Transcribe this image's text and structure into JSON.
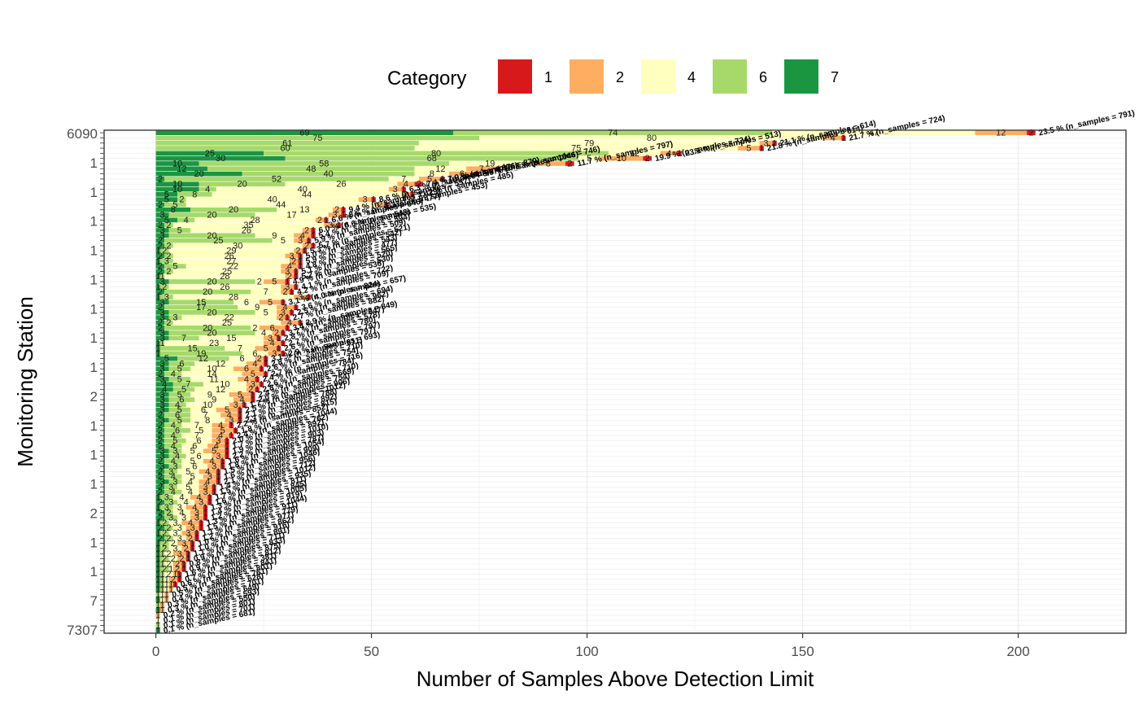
{
  "chart_data": {
    "type": "bar",
    "orientation": "horizontal",
    "stacked": true,
    "xlabel": "Number of Samples Above Detection Limit",
    "ylabel": "Monitoring Station",
    "xlim": [
      -12,
      225
    ],
    "x_ticks": [
      0,
      50,
      100,
      150,
      200
    ],
    "grid": true,
    "legend": {
      "title": "Category",
      "position": "top",
      "entries": [
        {
          "label": "1",
          "color": "#d7191c"
        },
        {
          "label": "2",
          "color": "#fdae61"
        },
        {
          "label": "4",
          "color": "#ffffbf"
        },
        {
          "label": "6",
          "color": "#a6d96a"
        },
        {
          "label": "7",
          "color": "#1a9641"
        }
      ]
    },
    "visible_station_labels": [
      "6090",
      "1",
      "1",
      "1",
      "1",
      "1",
      "1",
      "1",
      "1",
      "2",
      "1",
      "1",
      "1",
      "2",
      "1",
      "1",
      "7",
      "7307"
    ],
    "bars": [
      {
        "segments": [
          2,
          12,
          47,
          74,
          69
        ],
        "label": "23.5 % (n_samples = 791)"
      },
      {
        "segments": [
          1,
          4,
          80,
          75,
          0
        ],
        "label": "21.7 % (n_samples = 724)"
      },
      {
        "segments": [
          1,
          3,
          79,
          61,
          0
        ],
        "label": "21.1 % (n_samples = 614)"
      },
      {
        "segments": [
          1,
          5,
          75,
          60,
          0
        ],
        "label": "21.8 % (n_samples = 614)"
      },
      {
        "segments": [
          1,
          4,
          12,
          80,
          25
        ],
        "label": "23.1 % (n_samples = 513)"
      },
      {
        "segments": [
          2,
          10,
          5,
          68,
          30
        ],
        "label": "19.9 % (n_samples = 724)"
      },
      {
        "segments": [
          2,
          8,
          19,
          58,
          10
        ],
        "label": "11.7 % (n_samples = 797)"
      },
      {
        "segments": [
          1,
          7,
          12,
          48,
          12
        ],
        "label": "10.8 % (n_samples = 746)"
      },
      {
        "segments": [
          1,
          6,
          8,
          40,
          20
        ],
        "label": "6.5 % (n_samples = 1046)"
      },
      {
        "segments": [
          1,
          5,
          7,
          52,
          2
        ],
        "label": "7.9 % (n_samples = 870)"
      },
      {
        "segments": [
          2,
          4,
          26,
          20,
          10
        ],
        "label": "7.4 % (n_samples = 876)"
      },
      {
        "segments": [
          1,
          3,
          40,
          4,
          10
        ],
        "label": "6.3 % (n_samples = 997)"
      },
      {
        "segments": [
          1,
          2,
          44,
          8,
          5
        ],
        "label": "11.2 % (n_samples = 485)"
      },
      {
        "segments": [
          1,
          3,
          40,
          2,
          5
        ],
        "label": "8.6 % (n_samples = 557)"
      },
      {
        "segments": [
          1,
          2,
          44,
          5,
          2
        ],
        "label": "11.1 % (n_samples = 453)"
      },
      {
        "segments": [
          1,
          2,
          13,
          20,
          8
        ],
        "label": "9.4 % (n_samples = 429)"
      },
      {
        "segments": [
          1,
          3,
          17,
          20,
          3
        ],
        "label": "8.6 % (n_samples = 477)"
      },
      {
        "segments": [
          1,
          2,
          28,
          4,
          5
        ],
        "label": "6.6 % (n_samples = 546)"
      },
      {
        "segments": [
          1,
          3,
          35,
          2,
          2
        ],
        "label": "6.6 % (n_samples = 535)"
      },
      {
        "segments": [
          1,
          2,
          26,
          5,
          3
        ],
        "label": "6.0 % (n_samples = 543)"
      },
      {
        "segments": [
          1,
          4,
          9,
          20,
          3
        ],
        "label": "5.4 % (n_samples = 594)"
      },
      {
        "segments": [
          1,
          3,
          5,
          25,
          2
        ],
        "label": "5.9 % (n_samples = 509)"
      },
      {
        "segments": [
          1,
          2,
          30,
          2,
          2
        ],
        "label": "5.7 % (n_samples = 521)"
      },
      {
        "segments": [
          1,
          2,
          29,
          2,
          1
        ],
        "label": "5.3 % (n_samples = 542)"
      },
      {
        "segments": [
          1,
          3,
          26,
          2,
          2
        ],
        "label": "5.0 % (n_samples = 543)"
      },
      {
        "segments": [
          1,
          2,
          27,
          3,
          1
        ],
        "label": "5.9 % (n_samples = 477)"
      },
      {
        "segments": [
          1,
          4,
          22,
          5,
          2
        ],
        "label": "4.8 % (n_samples = 565)"
      },
      {
        "segments": [
          1,
          3,
          25,
          2,
          2
        ],
        "label": "5.1 % (n_samples = 520)"
      },
      {
        "segments": [
          1,
          2,
          28,
          1,
          1
        ],
        "label": "5.2 % (n_samples = 530)"
      },
      {
        "segments": [
          1,
          5,
          2,
          20,
          3
        ],
        "label": "4.9 % (n_samples = 536)"
      },
      {
        "segments": [
          1,
          3,
          26,
          2,
          1
        ],
        "label": "4.1 % (n_samples = 722)"
      },
      {
        "segments": [
          1,
          2,
          7,
          20,
          2
        ],
        "label": "4.2 % (n_samples = 709)"
      },
      {
        "segments": [
          1,
          3,
          28,
          3,
          1
        ],
        "label": "4.0 % (n_samples = 657)"
      },
      {
        "segments": [
          1,
          5,
          6,
          15,
          3
        ],
        "label": "3.1 % (n_samples = 824)"
      },
      {
        "segments": [
          1,
          4,
          9,
          17,
          2
        ],
        "label": "3.6 % (n_samples = 694)"
      },
      {
        "segments": [
          1,
          3,
          5,
          20,
          3
        ],
        "label": "2.5 % (n_samples = 962)"
      },
      {
        "segments": [
          1,
          2,
          22,
          3,
          3
        ],
        "label": "2.7 % (n_samples = 882)"
      },
      {
        "segments": [
          1,
          4,
          25,
          2,
          2
        ],
        "label": "2.9 % (n_samples = 849)"
      },
      {
        "segments": [
          1,
          6,
          2,
          20,
          2
        ],
        "label": "3.4 % (n_samples = 647)"
      },
      {
        "segments": [
          1,
          2,
          4,
          20,
          3
        ],
        "label": "3.7 % (n_samples = 578)"
      },
      {
        "segments": [
          1,
          3,
          15,
          7,
          3
        ],
        "label": "2.8 % (n_samples = 780)"
      },
      {
        "segments": [
          1,
          4,
          23,
          1,
          1
        ],
        "label": "2.7 % (n_samples = 797)"
      },
      {
        "segments": [
          1,
          5,
          7,
          15,
          1
        ],
        "label": "2.6 % (n_samples = 797)"
      },
      {
        "segments": [
          1,
          3,
          6,
          19,
          1
        ],
        "label": "2.9 % (n_samples = 693)"
      },
      {
        "segments": [
          1,
          2,
          6,
          12,
          5
        ],
        "label": "3.1 % (n_samples = 611)"
      },
      {
        "segments": [
          1,
          4,
          12,
          6,
          3
        ],
        "label": "2.8 % (n_samples = 710)"
      },
      {
        "segments": [
          1,
          6,
          10,
          5,
          3
        ],
        "label": "2.6 % (n_samples = 754)"
      },
      {
        "segments": [
          1,
          5,
          14,
          4,
          2
        ],
        "label": "2.7 % (n_samples = 716)"
      },
      {
        "segments": [
          1,
          4,
          11,
          5,
          3
        ],
        "label": "2.4 % (n_samples = 784)"
      },
      {
        "segments": [
          1,
          3,
          10,
          7,
          4
        ],
        "label": "2.6 % (n_samples = 710)"
      },
      {
        "segments": [
          1,
          2,
          12,
          5,
          4
        ],
        "label": "2.8 % (n_samples = 669)"
      },
      {
        "segments": [
          1,
          5,
          9,
          5,
          3
        ],
        "label": "2.4 % (n_samples = 754)"
      },
      {
        "segments": [
          1,
          4,
          9,
          6,
          3
        ],
        "label": "2.0 % (n_samples = 906)"
      },
      {
        "segments": [
          1,
          3,
          10,
          4,
          3
        ],
        "label": "1.7 % (n_samples = 1012)"
      },
      {
        "segments": [
          1,
          5,
          6,
          5,
          3
        ],
        "label": "2.5 % (n_samples = 788)"
      },
      {
        "segments": [
          1,
          4,
          7,
          6,
          2
        ],
        "label": "2.1 % (n_samples = 892)"
      },
      {
        "segments": [
          1,
          3,
          8,
          5,
          3
        ],
        "label": "2.3 % (n_samples = 815)"
      },
      {
        "segments": [
          1,
          4,
          7,
          4,
          2
        ],
        "label": "2.2 % (n_samples = 852)"
      },
      {
        "segments": [
          1,
          5,
          5,
          6,
          2
        ],
        "label": "1.8 % (n_samples = 1044)"
      },
      {
        "segments": [
          1,
          4,
          7,
          4,
          2
        ],
        "label": "2.4 % (n_samples = 762)"
      },
      {
        "segments": [
          1,
          3,
          6,
          5,
          2
        ],
        "label": "2.0 % (n_samples = 892)"
      },
      {
        "segments": [
          1,
          4,
          6,
          4,
          2
        ],
        "label": "1.7 % (n_samples = 1010)"
      },
      {
        "segments": [
          1,
          5,
          5,
          3,
          3
        ],
        "label": "1.9 % (n_samples = 903)"
      },
      {
        "segments": [
          1,
          3,
          6,
          4,
          3
        ],
        "label": "2.2 % (n_samples = 787)"
      },
      {
        "segments": [
          1,
          4,
          5,
          4,
          2
        ],
        "label": "1.6 % (n_samples = 1054)"
      },
      {
        "segments": [
          1,
          3,
          6,
          3,
          3
        ],
        "label": "1.8 % (n_samples = 909)"
      },
      {
        "segments": [
          1,
          4,
          5,
          3,
          2
        ],
        "label": "1.5 % (n_samples = 1046)"
      },
      {
        "segments": [
          1,
          3,
          5,
          4,
          2
        ],
        "label": "1.6 % (n_samples = 956)"
      },
      {
        "segments": [
          1,
          4,
          4,
          3,
          3
        ],
        "label": "2.1 % (n_samples = 712)"
      },
      {
        "segments": [
          1,
          3,
          5,
          3,
          2
        ],
        "label": "1.4 % (n_samples = 1012)"
      },
      {
        "segments": [
          1,
          3,
          4,
          4,
          2
        ],
        "label": "1.5 % (n_samples = 935)"
      },
      {
        "segments": [
          1,
          4,
          4,
          3,
          1
        ],
        "label": "1.7 % (n_samples = 811)"
      },
      {
        "segments": [
          1,
          3,
          4,
          3,
          2
        ],
        "label": "1.6 % (n_samples = 845)"
      },
      {
        "segments": [
          1,
          4,
          3,
          3,
          1
        ],
        "label": "1.3 % (n_samples = 1005)"
      },
      {
        "segments": [
          1,
          3,
          4,
          2,
          2
        ],
        "label": "1.4 % (n_samples = 919)"
      },
      {
        "segments": [
          1,
          3,
          3,
          3,
          2
        ],
        "label": "1.2 % (n_samples = 1044)"
      },
      {
        "segments": [
          1,
          4,
          3,
          2,
          1
        ],
        "label": "1.3 % (n_samples = 911)"
      },
      {
        "segments": [
          1,
          3,
          3,
          2,
          2
        ],
        "label": "1.5 % (n_samples = 779)"
      },
      {
        "segments": [
          1,
          3,
          3,
          2,
          1
        ],
        "label": "1.1 % (n_samples = 977)"
      },
      {
        "segments": [
          1,
          2,
          3,
          2,
          2
        ],
        "label": "1.2 % (n_samples = 862)"
      },
      {
        "segments": [
          1,
          3,
          2,
          2,
          1
        ],
        "label": "1.0 % (n_samples = 916)"
      },
      {
        "segments": [
          1,
          2,
          3,
          2,
          1
        ],
        "label": "1.0 % (n_samples = 891)"
      },
      {
        "segments": [
          1,
          3,
          2,
          1,
          1
        ],
        "label": "1.1 % (n_samples = 711)"
      },
      {
        "segments": [
          1,
          2,
          2,
          2,
          1
        ],
        "label": "0.9 % (n_samples = 833)"
      },
      {
        "segments": [
          1,
          2,
          2,
          1,
          1
        ],
        "label": "0.8 % (n_samples = 875)"
      },
      {
        "segments": [
          1,
          2,
          1,
          2,
          1
        ],
        "label": "0.9 % (n_samples = 812)"
      },
      {
        "segments": [
          1,
          1,
          2,
          1,
          1
        ],
        "label": "1.6 % (n_samples = 381)"
      },
      {
        "segments": [
          1,
          2,
          1,
          1,
          1
        ],
        "label": "0.7 % (n_samples = 841)"
      },
      {
        "segments": [
          1,
          1,
          1,
          1,
          1
        ],
        "label": "0.6 % (n_samples = 801)"
      },
      {
        "segments": [
          0,
          1,
          1,
          1,
          1
        ],
        "label": "0.5 % (n_samples = 761)"
      },
      {
        "segments": [
          0,
          1,
          1,
          1,
          0
        ],
        "label": "0.5 % (n_samples = 628)"
      },
      {
        "segments": [
          0,
          1,
          1,
          0,
          1
        ],
        "label": "0.4 % (n_samples = 701)"
      },
      {
        "segments": [
          0,
          1,
          0,
          1,
          0
        ],
        "label": "0.3 % (n_samples = 649)"
      },
      {
        "segments": [
          0,
          1,
          0,
          0,
          1
        ],
        "label": "0.3 % (n_samples = 593)"
      },
      {
        "segments": [
          0,
          1,
          0,
          0,
          0
        ],
        "label": "0.2 % (n_samples = 550)"
      },
      {
        "segments": [
          0,
          0,
          1,
          0,
          0
        ],
        "label": "0.1 % (n_samples = 801)"
      },
      {
        "segments": [
          0,
          0,
          0,
          1,
          0
        ],
        "label": "0.1 % (n_samples = 701)"
      },
      {
        "segments": [
          0,
          0,
          0,
          0,
          1
        ],
        "label": "0.1 % (n_samples = 681)"
      }
    ]
  }
}
